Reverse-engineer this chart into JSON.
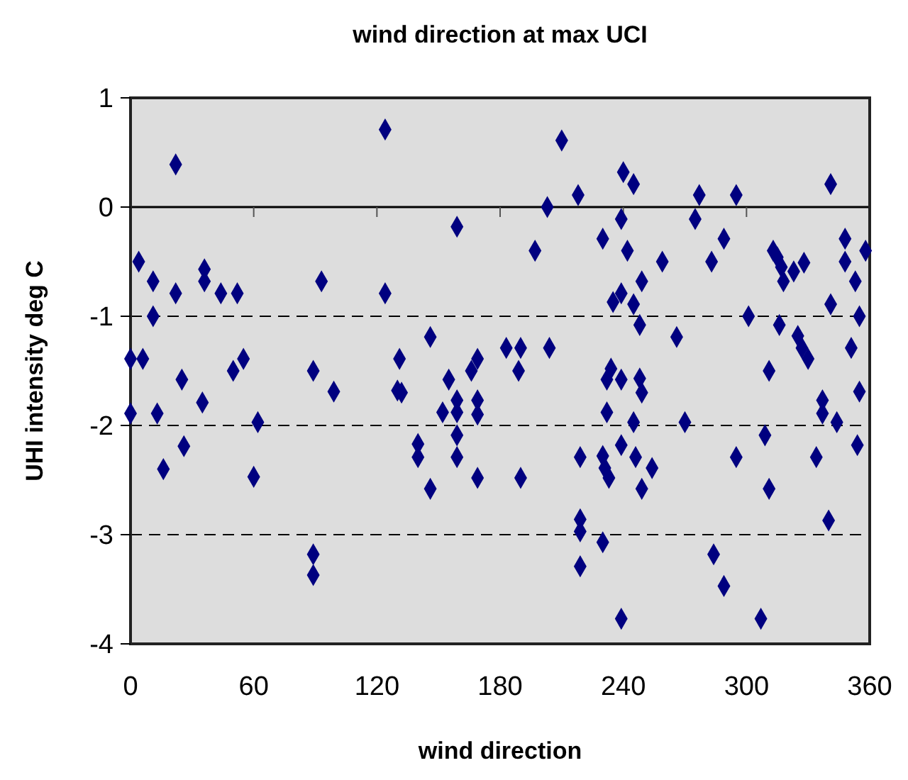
{
  "chart_data": {
    "type": "scatter",
    "title": "wind direction at max UCI",
    "xlabel": "wind direction",
    "ylabel": "UHI intensity deg C",
    "xlim": [
      0,
      360
    ],
    "xticks": [
      0,
      60,
      120,
      180,
      240,
      300,
      360
    ],
    "ylim": [
      -4,
      1
    ],
    "yticks": [
      -4,
      -3,
      -2,
      -1,
      0,
      1
    ],
    "grid": "y",
    "marker": "diamond",
    "ref_lines": [
      {
        "axis": "y",
        "value": 0,
        "color": "#000000",
        "line_style": "solid"
      }
    ],
    "series": [
      {
        "color": "#000080",
        "x": [
          4,
          11,
          22,
          36,
          36,
          44,
          52,
          93,
          11,
          0,
          6,
          25,
          50,
          55,
          89,
          99,
          0,
          13,
          35,
          62,
          26,
          16,
          60,
          89,
          89,
          22,
          124,
          210,
          218,
          203,
          159,
          197,
          124,
          146,
          131,
          130,
          132,
          155,
          169,
          166,
          183,
          190,
          204,
          189,
          159,
          169,
          152,
          159,
          169,
          159,
          140,
          140,
          159,
          146,
          169,
          190,
          219,
          219,
          219,
          219,
          240,
          245,
          277,
          295,
          341,
          239,
          275,
          230,
          242,
          259,
          249,
          289,
          283,
          313,
          315,
          317,
          318,
          323,
          328,
          348,
          348,
          358,
          353,
          341,
          355,
          235,
          239,
          245,
          248,
          266,
          301,
          316,
          325,
          327,
          330,
          351,
          311,
          234,
          232,
          239,
          248,
          249,
          355,
          337,
          337,
          344,
          232,
          245,
          270,
          309,
          354,
          334,
          295,
          239,
          230,
          231,
          233,
          246,
          254,
          249,
          311,
          340,
          230,
          284,
          289,
          239,
          307
        ],
        "values": [
          -0.5,
          -0.68,
          -0.79,
          -0.57,
          -0.68,
          -0.79,
          -0.79,
          -0.68,
          -1.0,
          -1.39,
          -1.39,
          -1.58,
          -1.5,
          -1.39,
          -1.5,
          -1.69,
          -1.89,
          -1.89,
          -1.79,
          -1.97,
          -2.19,
          -2.4,
          -2.47,
          -3.18,
          -3.37,
          0.39,
          0.71,
          0.61,
          0.11,
          0.0,
          -0.18,
          -0.4,
          -0.79,
          -1.19,
          -1.39,
          -1.68,
          -1.7,
          -1.58,
          -1.39,
          -1.5,
          -1.29,
          -1.29,
          -1.29,
          -1.5,
          -1.77,
          -1.77,
          -1.88,
          -1.88,
          -1.9,
          -2.09,
          -2.17,
          -2.29,
          -2.29,
          -2.58,
          -2.48,
          -2.48,
          -2.29,
          -2.86,
          -2.97,
          -3.29,
          0.32,
          0.21,
          0.11,
          0.11,
          0.21,
          -0.11,
          -0.11,
          -0.29,
          -0.4,
          -0.5,
          -0.68,
          -0.29,
          -0.5,
          -0.4,
          -0.46,
          -0.55,
          -0.68,
          -0.59,
          -0.51,
          -0.29,
          -0.5,
          -0.4,
          -0.68,
          -0.89,
          -1.0,
          -0.87,
          -0.79,
          -0.89,
          -1.08,
          -1.19,
          -1.0,
          -1.08,
          -1.18,
          -1.29,
          -1.39,
          -1.29,
          -1.5,
          -1.48,
          -1.58,
          -1.58,
          -1.57,
          -1.7,
          -1.69,
          -1.77,
          -1.89,
          -1.97,
          -1.88,
          -1.97,
          -1.97,
          -2.09,
          -2.18,
          -2.29,
          -2.29,
          -2.18,
          -2.28,
          -2.39,
          -2.48,
          -2.29,
          -2.39,
          -2.58,
          -2.58,
          -2.87,
          -3.07,
          -3.18,
          -3.47,
          -3.77,
          -3.77
        ]
      }
    ]
  }
}
